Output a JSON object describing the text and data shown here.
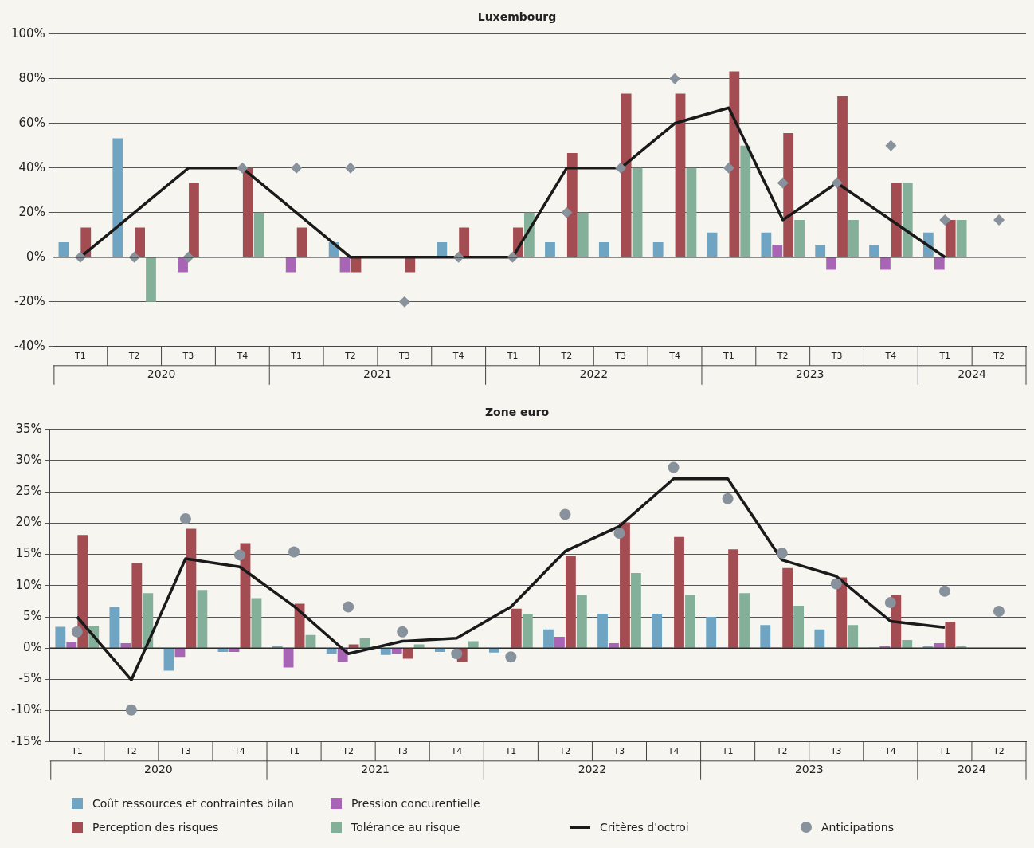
{
  "chart_data": [
    {
      "type": "bar",
      "title": "Luxembourg",
      "categories": [
        "T1",
        "T2",
        "T3",
        "T4",
        "T1",
        "T2",
        "T3",
        "T4",
        "T1",
        "T2",
        "T3",
        "T4",
        "T1",
        "T2",
        "T3",
        "T4",
        "T1",
        "T2"
      ],
      "annotations": [
        "2020",
        "2021",
        "2022",
        "2023",
        "2024"
      ],
      "ylim": [
        -40,
        100
      ],
      "yticks": [
        {
          "value": -40,
          "label": "-40%"
        },
        {
          "value": -20,
          "label": "-20%"
        },
        {
          "value": 0,
          "label": "0%"
        },
        {
          "value": 20,
          "label": "20%"
        },
        {
          "value": 40,
          "label": "40%"
        },
        {
          "value": 60,
          "label": "60%"
        },
        {
          "value": 80,
          "label": "80%"
        },
        {
          "value": 100,
          "label": "100%"
        }
      ],
      "grid": "y",
      "series": [
        {
          "color": "#6fa5c2",
          "values": [
            6.7,
            53.3,
            null,
            null,
            null,
            6.7,
            null,
            6.7,
            null,
            6.7,
            6.7,
            6.7,
            11.1,
            11.1,
            5.6,
            5.6,
            11.1,
            null
          ]
        },
        {
          "color": "#a965b5",
          "values": [
            null,
            null,
            -6.7,
            null,
            -6.7,
            -6.7,
            null,
            null,
            null,
            null,
            null,
            null,
            null,
            5.6,
            -5.6,
            -5.6,
            -5.6,
            null
          ]
        },
        {
          "color": "#a34c52",
          "values": [
            13.3,
            13.3,
            33.3,
            40,
            13.3,
            -6.7,
            -6.7,
            13.3,
            13.3,
            46.7,
            73.3,
            73.3,
            83.3,
            55.6,
            72.2,
            33.3,
            16.7,
            null
          ]
        },
        {
          "color": "#84b09a",
          "values": [
            null,
            -20,
            null,
            20,
            null,
            null,
            null,
            null,
            20,
            20,
            40,
            40,
            50,
            16.7,
            16.7,
            33.3,
            16.7,
            null
          ]
        },
        {
          "type": "line",
          "color": "#1a1a1a",
          "marker": "none",
          "values": [
            0,
            20,
            40,
            40,
            20,
            0,
            0,
            0,
            0,
            40,
            40,
            60,
            67,
            16.7,
            33.3,
            16.7,
            0,
            null
          ]
        },
        {
          "type": "scatter",
          "color": "#87929c",
          "marker": "diamond",
          "values": [
            0,
            0,
            0,
            40,
            40,
            40,
            -20,
            0,
            0,
            20,
            40,
            80,
            40,
            33.3,
            33.3,
            50,
            16.7,
            16.7
          ]
        }
      ]
    },
    {
      "type": "bar",
      "title": "Zone euro",
      "categories": [
        "T1",
        "T2",
        "T3",
        "T4",
        "T1",
        "T2",
        "T3",
        "T4",
        "T1",
        "T2",
        "T3",
        "T4",
        "T1",
        "T2",
        "T3",
        "T4",
        "T1",
        "T2"
      ],
      "annotations": [
        "2020",
        "2021",
        "2022",
        "2023",
        "2024"
      ],
      "ylim": [
        -15,
        35
      ],
      "yticks": [
        {
          "value": -15,
          "label": "-15%"
        },
        {
          "value": -10,
          "label": "-10%"
        },
        {
          "value": -5,
          "label": "-5%"
        },
        {
          "value": 0,
          "label": "0%"
        },
        {
          "value": 5,
          "label": "5%"
        },
        {
          "value": 10,
          "label": "10%"
        },
        {
          "value": 15,
          "label": "15%"
        },
        {
          "value": 20,
          "label": "20%"
        },
        {
          "value": 25,
          "label": "25%"
        },
        {
          "value": 30,
          "label": "30%"
        },
        {
          "value": 35,
          "label": "35%"
        }
      ],
      "grid": "y",
      "legend": "bottom",
      "series": [
        {
          "name": "Coût ressources et contraintes bilan",
          "color": "#6fa5c2",
          "values": [
            3.4,
            6.6,
            -3.6,
            -0.6,
            0.3,
            -0.9,
            -1.1,
            -0.6,
            -0.7,
            3.0,
            5.5,
            5.5,
            5.0,
            3.7,
            3.0,
            0.1,
            0.3,
            null
          ]
        },
        {
          "name": "Pression concurentielle",
          "color": "#a965b5",
          "values": [
            1.0,
            0.8,
            -1.4,
            -0.6,
            -3.1,
            -2.2,
            -0.9,
            null,
            null,
            1.8,
            0.8,
            0.1,
            0.1,
            0.1,
            0.1,
            0.3,
            0.8,
            null
          ]
        },
        {
          "name": "Perception des risques",
          "color": "#a34c52",
          "values": [
            18.1,
            13.6,
            19.1,
            16.8,
            7.1,
            0.6,
            -1.7,
            -2.2,
            6.3,
            14.8,
            20.1,
            17.8,
            15.8,
            12.8,
            11.3,
            8.5,
            4.2,
            null
          ]
        },
        {
          "name": "Tolérance au risque",
          "color": "#84b09a",
          "values": [
            3.6,
            8.8,
            9.3,
            8.0,
            2.1,
            1.6,
            0.6,
            1.1,
            5.5,
            8.5,
            12.0,
            8.5,
            8.8,
            6.8,
            3.7,
            1.3,
            0.3,
            null
          ]
        },
        {
          "name": "Critères d'octroi",
          "type": "line",
          "color": "#1a1a1a",
          "marker": "none",
          "values": [
            5.0,
            -5.1,
            14.3,
            13.0,
            6.7,
            -0.9,
            1.1,
            1.6,
            6.6,
            15.5,
            19.5,
            27.1,
            27.1,
            14.1,
            11.5,
            4.3,
            3.3,
            null
          ]
        },
        {
          "name": "Anticipations",
          "type": "scatter",
          "color": "#87929c",
          "marker": "circle",
          "values": [
            2.6,
            -9.9,
            20.7,
            14.9,
            15.4,
            6.6,
            2.6,
            -0.9,
            -1.4,
            21.4,
            18.4,
            28.9,
            23.9,
            15.2,
            10.3,
            7.3,
            9.1,
            5.9
          ]
        }
      ]
    }
  ]
}
